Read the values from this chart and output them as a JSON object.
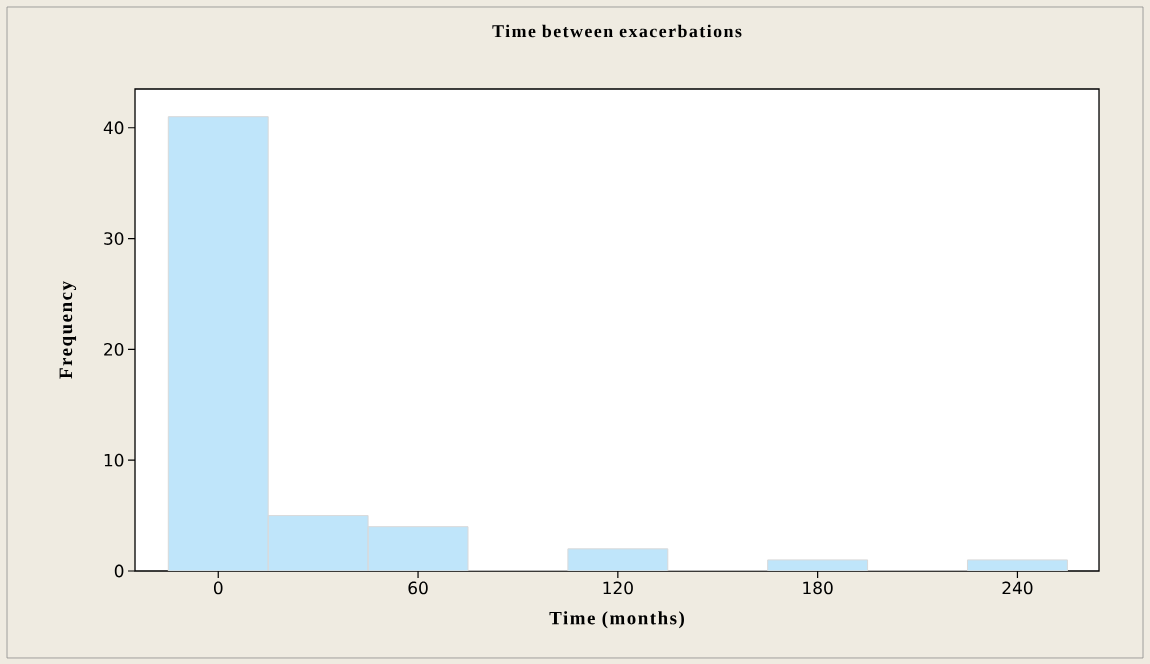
{
  "chart_data": {
    "type": "histogram",
    "title": "Time between exacerbations",
    "xlabel": "Time (months)",
    "ylabel": "Frequency",
    "bins": [
      -15,
      15,
      45,
      75,
      105,
      135,
      165,
      195,
      225,
      255
    ],
    "values": [
      41,
      5,
      4,
      0,
      2,
      0,
      1,
      0,
      1
    ],
    "color": "#bfe5fa",
    "xlim": [
      -25,
      264.5
    ],
    "ylim": [
      0,
      43.5
    ],
    "xticks": [
      0,
      60,
      120,
      180,
      240
    ],
    "yticks": [
      0,
      10,
      20,
      30,
      40
    ]
  }
}
